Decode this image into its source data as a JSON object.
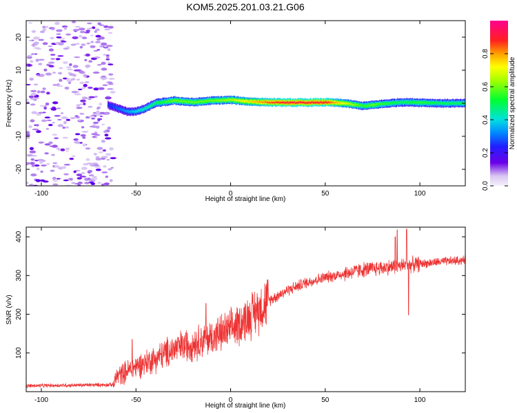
{
  "title": "KOM5.2025.201.03.21.G06",
  "chart_data": [
    {
      "type": "heatmap",
      "xlabel": "Height of straight line (km)",
      "ylabel": "Frequency (Hz)",
      "xlim": [
        -108,
        124
      ],
      "ylim": [
        -25,
        25
      ],
      "xticks": [
        -100,
        -50,
        0,
        50,
        100
      ],
      "yticks": [
        -20,
        -10,
        0,
        10,
        20
      ],
      "ridge": {
        "start_x": -65,
        "x": [
          -65,
          -60,
          -55,
          -50,
          -45,
          -40,
          -30,
          -20,
          -10,
          0,
          10,
          20,
          30,
          40,
          50,
          60,
          70,
          75,
          80,
          90,
          100,
          110,
          124
        ],
        "freq": [
          -0.5,
          -1.5,
          -2.5,
          -2.5,
          -1.5,
          0.0,
          0.8,
          0.3,
          0.8,
          1.0,
          0.5,
          0.3,
          0.2,
          0.2,
          0.3,
          0.0,
          -0.8,
          -0.5,
          -0.2,
          0.3,
          0.2,
          0.0,
          0.0
        ],
        "amplitude": [
          0.25,
          0.3,
          0.35,
          0.4,
          0.45,
          0.5,
          0.6,
          0.6,
          0.6,
          0.65,
          0.75,
          0.85,
          0.9,
          0.9,
          0.9,
          0.7,
          0.55,
          0.6,
          0.55,
          0.5,
          0.55,
          0.5,
          0.5
        ]
      },
      "noise_region": [
        -108,
        -62
      ],
      "colorbar": {
        "label": "Normalized spectral amplitude",
        "range": [
          0,
          1
        ],
        "ticks": [
          0,
          0.2,
          0.4,
          0.6,
          0.8
        ]
      }
    },
    {
      "type": "line",
      "xlabel": "Height of straight line (km)",
      "ylabel": "SNR (v/v)",
      "xlim": [
        -108,
        124
      ],
      "ylim": [
        0,
        425
      ],
      "xticks": [
        -100,
        -50,
        0,
        50,
        100
      ],
      "yticks": [
        100,
        200,
        300,
        400
      ],
      "color": "#ee3333",
      "series": [
        {
          "trend": {
            "x": [
              -108,
              -62,
              -60,
              -50,
              -40,
              -30,
              -20,
              -10,
              0,
              10,
              20,
              30,
              40,
              50,
              60,
              70,
              80,
              90,
              100,
              110,
              124
            ],
            "y": [
              15,
              18,
              40,
              65,
              85,
              110,
              125,
              140,
              160,
              195,
              235,
              262,
              282,
              295,
              305,
              315,
              320,
              325,
              330,
              335,
              340
            ]
          },
          "spikes": [
            {
              "x": -52,
              "y": 135
            },
            {
              "x": -13,
              "y": 228
            },
            {
              "x": 87,
              "y": 400
            },
            {
              "x": 88,
              "y": 418
            },
            {
              "x": 93,
              "y": 420
            },
            {
              "x": 94,
              "y": 198
            }
          ]
        }
      ]
    }
  ]
}
